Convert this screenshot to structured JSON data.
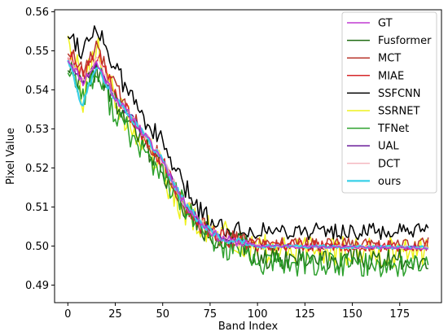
{
  "chart_data": {
    "type": "line",
    "title": "",
    "xlabel": "Band Index",
    "ylabel": "Pixel Value",
    "xlim": [
      -7,
      197
    ],
    "ylim": [
      0.4855,
      0.5605
    ],
    "xticks": [
      0,
      25,
      50,
      75,
      100,
      125,
      150,
      175
    ],
    "yticks": [
      0.49,
      0.5,
      0.51,
      0.52,
      0.53,
      0.54,
      0.55,
      0.56
    ],
    "ytick_labels": [
      "0.49",
      "0.50",
      "0.51",
      "0.52",
      "0.53",
      "0.54",
      "0.55",
      "0.56"
    ],
    "grid": false,
    "legend_position": "top-right",
    "x_range": [
      0,
      190
    ],
    "series": [
      {
        "name": "GT",
        "color": "#c13ad2",
        "width": 1.5,
        "seed": 11,
        "noise": 0.0012,
        "high_noise": 0.0004,
        "base_offset": 0.0,
        "tail_offset": 0.0,
        "order": 9,
        "shape": [
          [
            0,
            0.548
          ],
          [
            8,
            0.542
          ],
          [
            15,
            0.547
          ],
          [
            25,
            0.538
          ],
          [
            35,
            0.532
          ],
          [
            50,
            0.522
          ],
          [
            60,
            0.512
          ],
          [
            70,
            0.506
          ],
          [
            80,
            0.502
          ],
          [
            90,
            0.501
          ],
          [
            100,
            0.5
          ],
          [
            190,
            0.4995
          ]
        ]
      },
      {
        "name": "Fusformer",
        "color": "#1f6b12",
        "width": 1.5,
        "seed": 22,
        "noise": 0.003,
        "high_noise": 0.0028,
        "base_offset": -0.0005,
        "tail_offset": -0.002,
        "order": 2,
        "shape": [
          [
            0,
            0.547
          ],
          [
            8,
            0.541
          ],
          [
            15,
            0.546
          ],
          [
            25,
            0.537
          ],
          [
            35,
            0.53
          ],
          [
            50,
            0.52
          ],
          [
            60,
            0.511
          ],
          [
            70,
            0.505
          ],
          [
            80,
            0.502
          ],
          [
            90,
            0.501
          ],
          [
            100,
            0.499
          ],
          [
            190,
            0.4985
          ]
        ]
      },
      {
        "name": "MCT",
        "color": "#b8372c",
        "width": 1.5,
        "seed": 33,
        "noise": 0.0025,
        "high_noise": 0.0018,
        "base_offset": 0.0005,
        "tail_offset": 0.0005,
        "order": 3,
        "shape": [
          [
            0,
            0.55
          ],
          [
            8,
            0.544
          ],
          [
            15,
            0.55
          ],
          [
            25,
            0.54
          ],
          [
            35,
            0.532
          ],
          [
            50,
            0.521
          ],
          [
            60,
            0.511
          ],
          [
            70,
            0.505
          ],
          [
            80,
            0.502
          ],
          [
            90,
            0.501
          ],
          [
            100,
            0.5
          ],
          [
            190,
            0.5
          ]
        ]
      },
      {
        "name": "MIAE",
        "color": "#d62728",
        "width": 1.5,
        "seed": 44,
        "noise": 0.0022,
        "high_noise": 0.0015,
        "base_offset": 0.0002,
        "tail_offset": 0.0,
        "order": 4,
        "shape": [
          [
            0,
            0.549
          ],
          [
            8,
            0.543
          ],
          [
            15,
            0.549
          ],
          [
            25,
            0.539
          ],
          [
            35,
            0.532
          ],
          [
            50,
            0.521
          ],
          [
            60,
            0.511
          ],
          [
            70,
            0.505
          ],
          [
            80,
            0.502
          ],
          [
            90,
            0.501
          ],
          [
            100,
            0.5
          ],
          [
            190,
            0.4998
          ]
        ]
      },
      {
        "name": "SSFCNN",
        "color": "#000000",
        "width": 1.5,
        "seed": 55,
        "noise": 0.0028,
        "high_noise": 0.0022,
        "base_offset": 0.002,
        "tail_offset": 0.002,
        "order": 1,
        "shape": [
          [
            0,
            0.553
          ],
          [
            8,
            0.548
          ],
          [
            15,
            0.555
          ],
          [
            25,
            0.543
          ],
          [
            35,
            0.535
          ],
          [
            50,
            0.524
          ],
          [
            60,
            0.514
          ],
          [
            70,
            0.507
          ],
          [
            80,
            0.503
          ],
          [
            90,
            0.502
          ],
          [
            100,
            0.502
          ],
          [
            190,
            0.5015
          ]
        ]
      },
      {
        "name": "SSRNET",
        "color": "#eef21c",
        "width": 1.5,
        "seed": 66,
        "noise": 0.0045,
        "high_noise": 0.004,
        "base_offset": 0.0,
        "tail_offset": -0.0005,
        "order": 0,
        "shape": [
          [
            0,
            0.556
          ],
          [
            8,
            0.538
          ],
          [
            15,
            0.552
          ],
          [
            25,
            0.536
          ],
          [
            35,
            0.53
          ],
          [
            50,
            0.519
          ],
          [
            60,
            0.51
          ],
          [
            70,
            0.504
          ],
          [
            80,
            0.503
          ],
          [
            90,
            0.501
          ],
          [
            100,
            0.4995
          ],
          [
            190,
            0.499
          ]
        ]
      },
      {
        "name": "TFNet",
        "color": "#2ca02c",
        "width": 1.5,
        "seed": 77,
        "noise": 0.0035,
        "high_noise": 0.0032,
        "base_offset": -0.001,
        "tail_offset": -0.0025,
        "order": 5,
        "shape": [
          [
            0,
            0.547
          ],
          [
            8,
            0.54
          ],
          [
            15,
            0.545
          ],
          [
            25,
            0.535
          ],
          [
            35,
            0.528
          ],
          [
            50,
            0.519
          ],
          [
            60,
            0.512
          ],
          [
            70,
            0.505
          ],
          [
            80,
            0.501
          ],
          [
            90,
            0.5
          ],
          [
            100,
            0.498
          ],
          [
            190,
            0.4975
          ]
        ]
      },
      {
        "name": "UAL",
        "color": "#6a1b9a",
        "width": 1.5,
        "seed": 88,
        "noise": 0.001,
        "high_noise": 0.0004,
        "base_offset": 0.0,
        "tail_offset": 0.0,
        "order": 6,
        "shape": [
          [
            0,
            0.548
          ],
          [
            8,
            0.542
          ],
          [
            15,
            0.547
          ],
          [
            25,
            0.538
          ],
          [
            35,
            0.532
          ],
          [
            50,
            0.522
          ],
          [
            60,
            0.512
          ],
          [
            70,
            0.506
          ],
          [
            80,
            0.502
          ],
          [
            90,
            0.501
          ],
          [
            100,
            0.5
          ],
          [
            190,
            0.4996
          ]
        ]
      },
      {
        "name": "DCT",
        "color": "#f4b8c0",
        "width": 1.5,
        "seed": 99,
        "noise": 0.0012,
        "high_noise": 0.0005,
        "base_offset": 0.0,
        "tail_offset": 0.0,
        "order": 7,
        "shape": [
          [
            0,
            0.549
          ],
          [
            8,
            0.542
          ],
          [
            15,
            0.548
          ],
          [
            25,
            0.538
          ],
          [
            35,
            0.532
          ],
          [
            50,
            0.522
          ],
          [
            60,
            0.512
          ],
          [
            70,
            0.506
          ],
          [
            80,
            0.502
          ],
          [
            90,
            0.501
          ],
          [
            100,
            0.5
          ],
          [
            190,
            0.4996
          ]
        ]
      },
      {
        "name": "ours",
        "color": "#38d0e8",
        "width": 2.2,
        "seed": 111,
        "noise": 0.001,
        "high_noise": 0.0004,
        "base_offset": 0.0,
        "tail_offset": 0.0,
        "order": 8,
        "shape": [
          [
            0,
            0.548
          ],
          [
            8,
            0.535
          ],
          [
            10,
            0.54
          ],
          [
            15,
            0.546
          ],
          [
            25,
            0.538
          ],
          [
            35,
            0.532
          ],
          [
            50,
            0.522
          ],
          [
            60,
            0.512
          ],
          [
            70,
            0.506
          ],
          [
            80,
            0.502
          ],
          [
            90,
            0.501
          ],
          [
            100,
            0.5
          ],
          [
            190,
            0.4996
          ]
        ]
      }
    ]
  }
}
